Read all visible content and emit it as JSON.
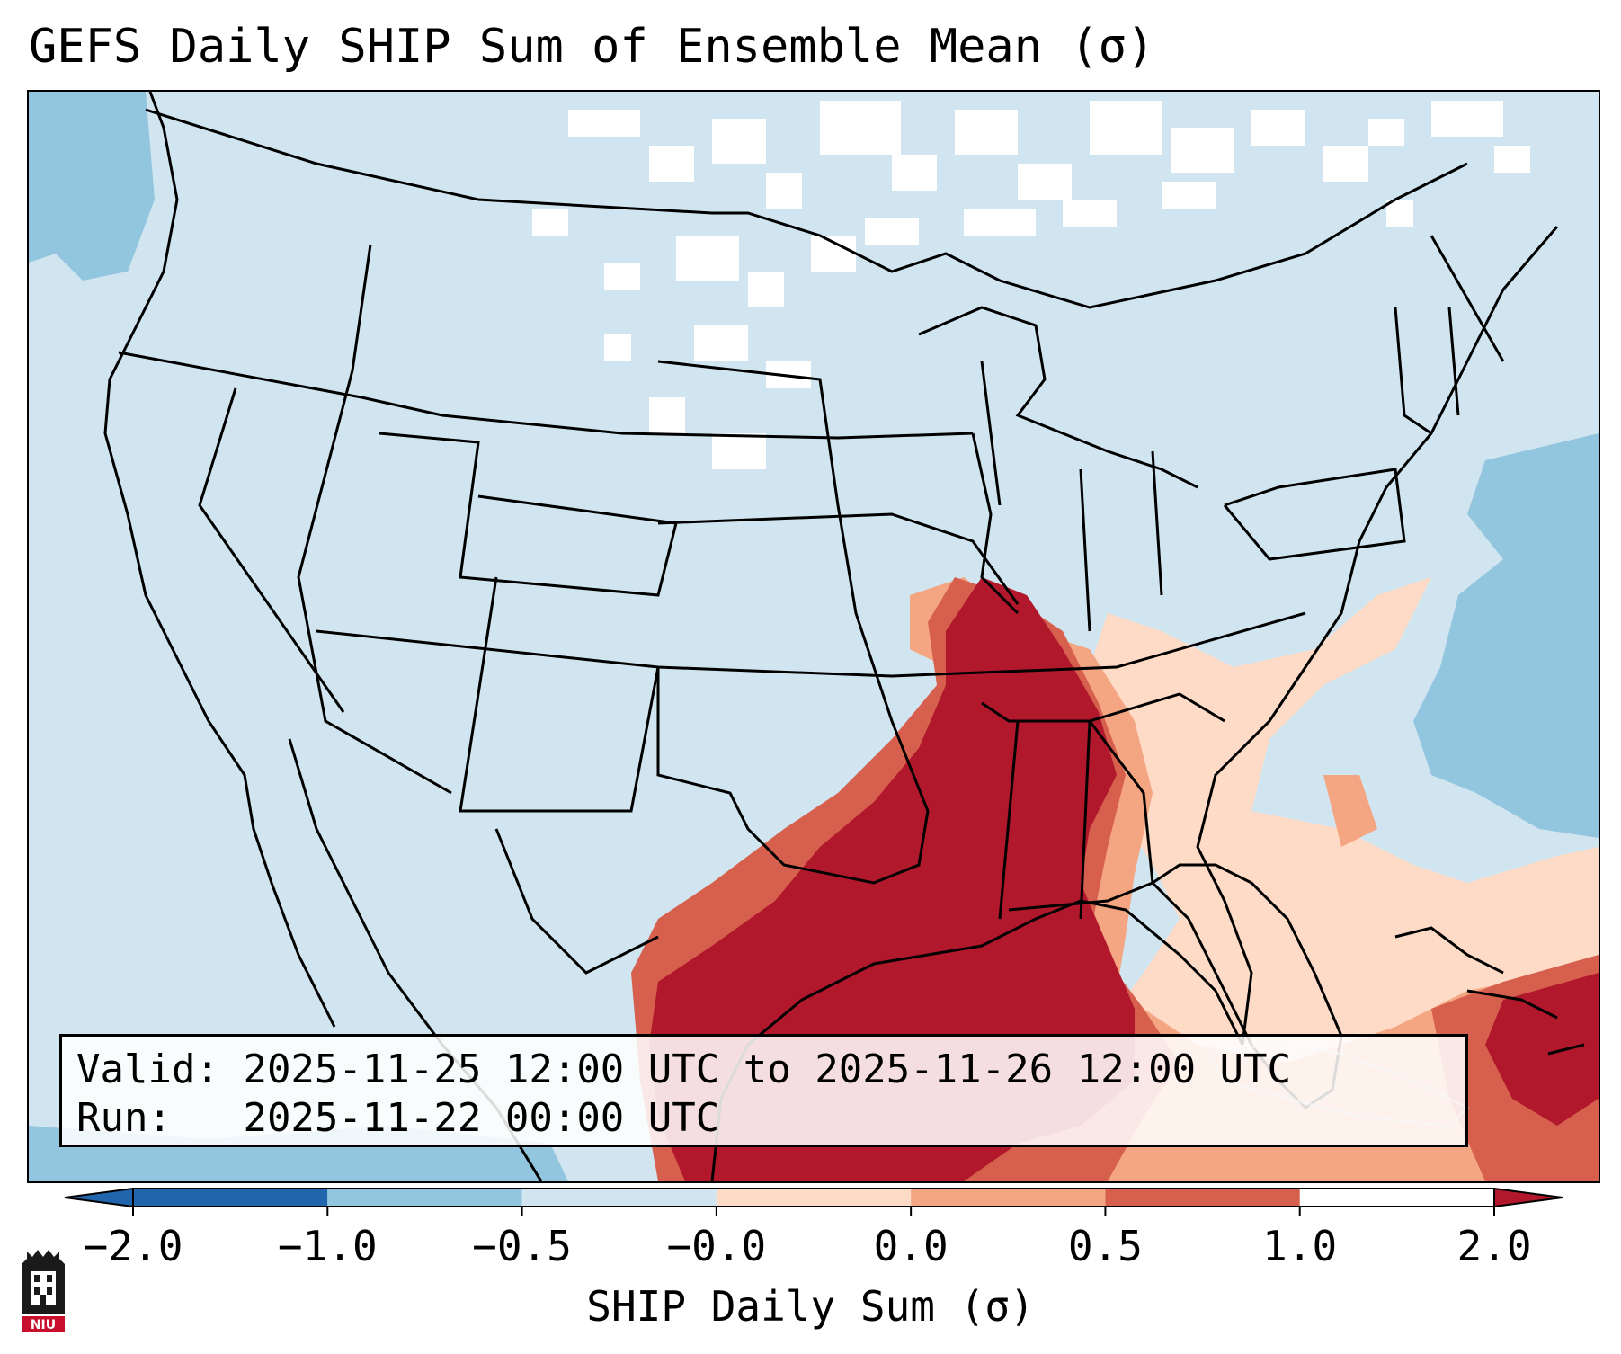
{
  "title": "GEFS Daily SHIP Sum of Ensemble Mean (σ)",
  "info": {
    "valid_label": "Valid:",
    "valid_value": "2025-11-25 12:00 UTC to 2025-11-26 12:00 UTC",
    "run_label": "Run:",
    "run_value": "2025-11-22 00:00 UTC"
  },
  "colorbar": {
    "label": "SHIP Daily Sum (σ)",
    "ticks": [
      "−2.0",
      "−1.0",
      "−0.5",
      "−0.0",
      "0.0",
      "0.5",
      "1.0",
      "2.0"
    ],
    "colors": [
      "#2166ac",
      "#4393c3",
      "#92c5de",
      "#d1e5f0",
      "#fddbc7",
      "#f4a582",
      "#d6604d",
      "#b2182b"
    ],
    "extend": "both"
  },
  "logo": {
    "text": "NIU"
  },
  "map": {
    "projection": "Lambert Conformal",
    "extent": "Contiguous United States",
    "background_color": "#d1e5f0"
  }
}
